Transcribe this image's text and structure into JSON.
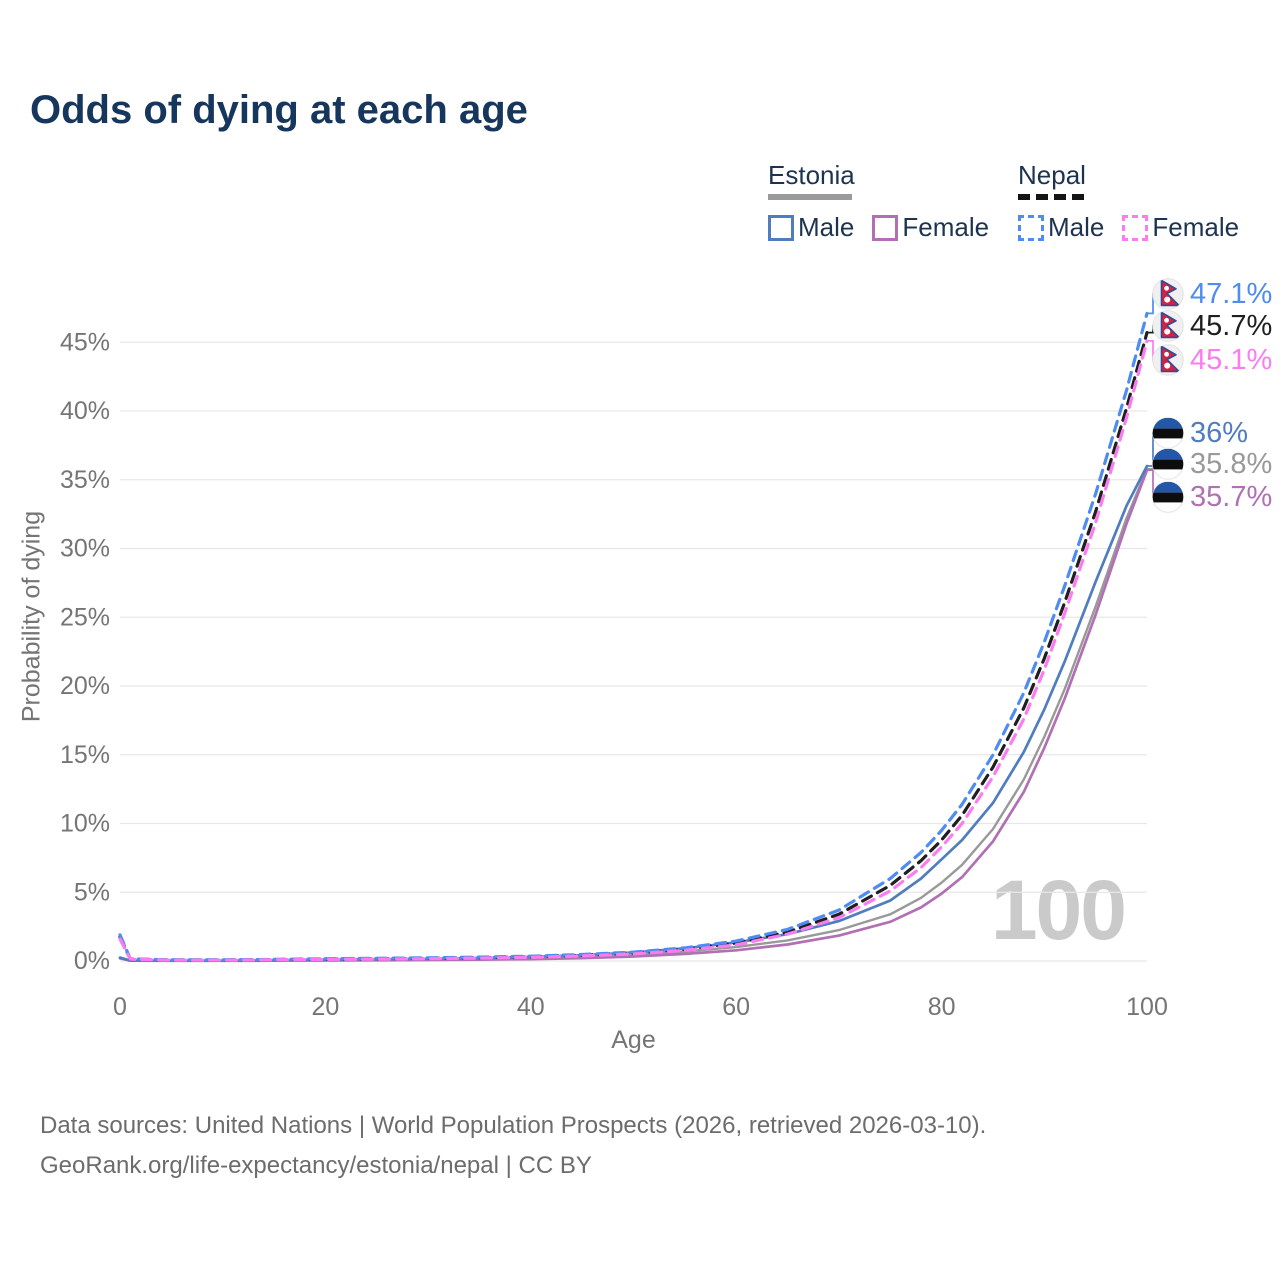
{
  "title": "Odds of dying at each age",
  "legend": {
    "estonia": {
      "name": "Estonia",
      "male": "Male",
      "female": "Female",
      "line_style": "solid",
      "underline_color": "#9a9a9a"
    },
    "nepal": {
      "name": "Nepal",
      "male": "Male",
      "female": "Female",
      "line_style": "dashed",
      "underline_color": "#141414"
    }
  },
  "watermark": "100",
  "footer": {
    "line1": "Data sources: United Nations | World Population Prospects (2026, retrieved 2026-03-10).",
    "line2": "GeoRank.org/life-expectancy/estonia/nepal | CC BY"
  },
  "colors": {
    "title_text": "#17365d",
    "axis_text": "#757575",
    "gridline": "#e7e7e7",
    "watermark": "#cacaca",
    "estonia_male": "#4f7dbf",
    "estonia_both": "#999999",
    "estonia_female": "#b170b3",
    "nepal_male": "#4e8cf2",
    "nepal_both": "#1f1f1f",
    "nepal_female": "#fb7cf1"
  },
  "chart_data": {
    "type": "line",
    "title": "Odds of dying at each age",
    "xlabel": "Age",
    "ylabel": "Probability of dying",
    "xlim": [
      0,
      100
    ],
    "ylim": [
      0,
      48
    ],
    "xticks": [
      0,
      20,
      40,
      60,
      80,
      100
    ],
    "yticks": [
      0,
      5,
      10,
      15,
      20,
      25,
      30,
      35,
      40,
      45
    ],
    "ytick_suffix": "%",
    "grid": "horizontal",
    "legend_position": "top-right",
    "hover_age_indicator": "100",
    "x": [
      0,
      1,
      5,
      10,
      15,
      20,
      25,
      30,
      35,
      40,
      45,
      50,
      55,
      60,
      65,
      70,
      75,
      78,
      80,
      82,
      85,
      88,
      90,
      92,
      95,
      98,
      100
    ],
    "series": [
      {
        "name": "Nepal Male",
        "country": "Nepal",
        "sex": "Male",
        "style": "dashed",
        "color": "#4e8cf2",
        "flag": "nepal",
        "end_label": "47.1%",
        "end_value": 47.1,
        "values": [
          1.9,
          0.15,
          0.08,
          0.08,
          0.12,
          0.17,
          0.2,
          0.23,
          0.28,
          0.35,
          0.47,
          0.65,
          0.95,
          1.45,
          2.3,
          3.7,
          6.0,
          7.9,
          9.5,
          11.4,
          15.0,
          19.5,
          23.2,
          27.3,
          34.0,
          41.5,
          47.1
        ]
      },
      {
        "name": "Nepal Both sexes",
        "country": "Nepal",
        "sex": "Both sexes",
        "style": "dashed",
        "color": "#1f1f1f",
        "flag": "nepal",
        "end_label": "45.7%",
        "end_value": 45.7,
        "values": [
          1.75,
          0.14,
          0.07,
          0.07,
          0.1,
          0.14,
          0.17,
          0.2,
          0.24,
          0.31,
          0.42,
          0.58,
          0.85,
          1.3,
          2.1,
          3.4,
          5.5,
          7.3,
          8.8,
          10.6,
          14.1,
          18.4,
          22.0,
          26.1,
          32.7,
          40.2,
          45.7
        ]
      },
      {
        "name": "Nepal Female",
        "country": "Nepal",
        "sex": "Female",
        "style": "dashed",
        "color": "#fb7cf1",
        "flag": "nepal",
        "end_label": "45.1%",
        "end_value": 45.1,
        "values": [
          1.6,
          0.13,
          0.06,
          0.06,
          0.09,
          0.12,
          0.14,
          0.17,
          0.21,
          0.27,
          0.37,
          0.52,
          0.77,
          1.18,
          1.95,
          3.15,
          5.1,
          6.8,
          8.3,
          10.0,
          13.4,
          17.6,
          21.2,
          25.3,
          31.9,
          39.5,
          45.1
        ]
      },
      {
        "name": "Estonia Male",
        "country": "Estonia",
        "sex": "Male",
        "style": "solid",
        "color": "#4f7dbf",
        "flag": "estonia",
        "end_label": "36%",
        "end_value": 36.0,
        "values": [
          0.25,
          0.03,
          0.02,
          0.02,
          0.05,
          0.1,
          0.13,
          0.16,
          0.22,
          0.3,
          0.42,
          0.62,
          0.92,
          1.35,
          1.95,
          2.9,
          4.4,
          6.0,
          7.4,
          8.8,
          11.5,
          15.2,
          18.3,
          21.8,
          27.6,
          33.1,
          36.0
        ]
      },
      {
        "name": "Estonia Both sexes",
        "country": "Estonia",
        "sex": "Both sexes",
        "style": "solid",
        "color": "#999999",
        "flag": "estonia",
        "end_label": "35.8%",
        "end_value": 35.8,
        "values": [
          0.22,
          0.025,
          0.018,
          0.018,
          0.04,
          0.07,
          0.09,
          0.12,
          0.16,
          0.22,
          0.31,
          0.46,
          0.7,
          1.02,
          1.5,
          2.25,
          3.4,
          4.6,
          5.7,
          7.0,
          9.6,
          13.2,
          16.3,
          19.8,
          25.8,
          32.2,
          35.8
        ]
      },
      {
        "name": "Estonia Female",
        "country": "Estonia",
        "sex": "Female",
        "style": "solid",
        "color": "#b170b3",
        "flag": "estonia",
        "end_label": "35.7%",
        "end_value": 35.7,
        "values": [
          0.2,
          0.02,
          0.015,
          0.015,
          0.025,
          0.04,
          0.05,
          0.07,
          0.1,
          0.14,
          0.21,
          0.33,
          0.52,
          0.78,
          1.2,
          1.85,
          2.85,
          3.9,
          4.9,
          6.1,
          8.7,
          12.3,
          15.5,
          19.1,
          25.2,
          31.8,
          35.7
        ]
      }
    ]
  }
}
